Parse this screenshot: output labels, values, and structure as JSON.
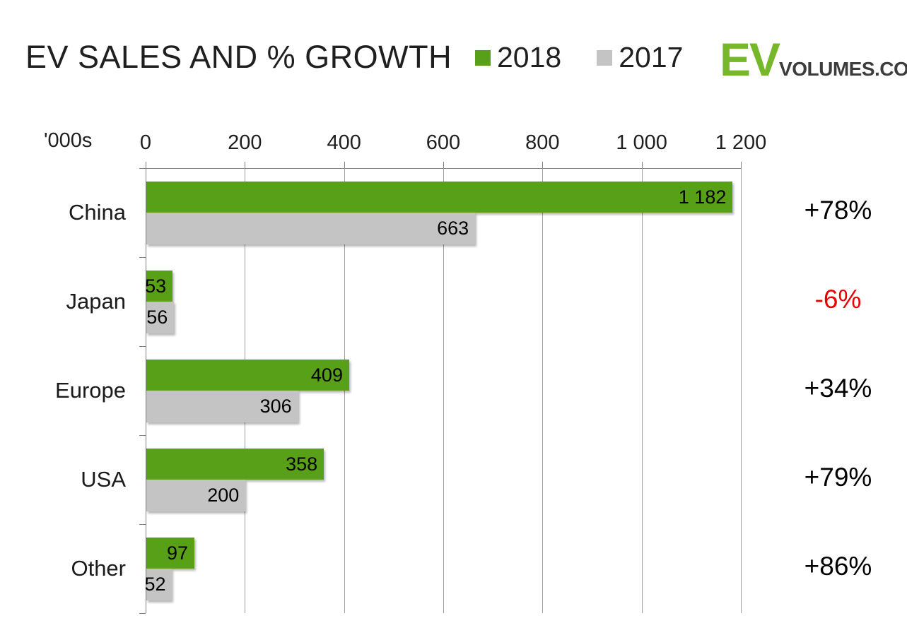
{
  "header": {
    "title": "EV SALES AND % GROWTH",
    "legend": [
      {
        "label": "2018",
        "color": "#58A018"
      },
      {
        "label": "2017",
        "color": "#C4C4C4"
      }
    ],
    "logo": {
      "ev": "EV",
      "rest": "VOLUMES.COM",
      "ev_color": "#76B82A",
      "rest_color": "#3c3c3c"
    }
  },
  "chart_data": {
    "type": "bar",
    "orientation": "horizontal",
    "title": "EV SALES AND % GROWTH",
    "unit_label": "'000s",
    "categories": [
      "China",
      "Japan",
      "Europe",
      "USA",
      "Other"
    ],
    "series": [
      {
        "name": "2018",
        "color": "#58A018",
        "values": [
          1182,
          53,
          409,
          358,
          97
        ],
        "value_labels": [
          "1 182",
          "53",
          "409",
          "358",
          "97"
        ]
      },
      {
        "name": "2017",
        "color": "#C4C4C4",
        "values": [
          663,
          56,
          306,
          200,
          52
        ],
        "value_labels": [
          "663",
          "56",
          "306",
          "200",
          "52"
        ]
      }
    ],
    "growth": [
      {
        "label": "+78%",
        "color": "#000000"
      },
      {
        "label": "-6%",
        "color": "#EA0000"
      },
      {
        "label": "+34%",
        "color": "#000000"
      },
      {
        "label": "+79%",
        "color": "#000000"
      },
      {
        "label": "+86%",
        "color": "#000000"
      }
    ],
    "x_ticks": [
      {
        "value": 0,
        "label": "0"
      },
      {
        "value": 200,
        "label": "200"
      },
      {
        "value": 400,
        "label": "400"
      },
      {
        "value": 600,
        "label": "600"
      },
      {
        "value": 800,
        "label": "800"
      },
      {
        "value": 1000,
        "label": "1 000"
      },
      {
        "value": 1200,
        "label": "1 200"
      }
    ],
    "xlim": [
      0,
      1200
    ],
    "grid": true,
    "legend_position": "top"
  }
}
